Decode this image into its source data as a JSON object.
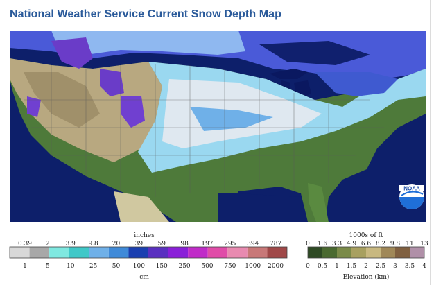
{
  "page": {
    "title": "National Weather Service Current Snow Depth Map"
  },
  "map": {
    "logo_text": "NOAA"
  },
  "snow_legend": {
    "title": "inches",
    "unit_bottom": "cm",
    "top_labels": [
      "0.39",
      "2",
      "3.9",
      "9.8",
      "20",
      "39",
      "59",
      "98",
      "197",
      "295",
      "394",
      "787"
    ],
    "bottom_labels": [
      "1",
      "5",
      "10",
      "25",
      "50",
      "100",
      "150",
      "250",
      "500",
      "750",
      "1000",
      "2000"
    ],
    "colors": [
      "#d8d8d8",
      "#a8a8a8",
      "#7fe8e0",
      "#40c8c8",
      "#6fb0e8",
      "#3f8ad8",
      "#1a3fb0",
      "#5a30c0",
      "#8a1fd8",
      "#c02bc8",
      "#e04ca8",
      "#e88ab0",
      "#c87878",
      "#a04848"
    ]
  },
  "elev_legend": {
    "title": "1000s of ft",
    "unit_bottom": "Elevation (km)",
    "top_labels": [
      "0",
      "1.6",
      "3.3",
      "4.9",
      "6.6",
      "8.2",
      "9.8",
      "11",
      "13"
    ],
    "bottom_labels": [
      "0",
      "0.5",
      "1",
      "1.5",
      "2",
      "2.5",
      "3",
      "3.5",
      "4"
    ],
    "colors": [
      "#2e4a24",
      "#4a6a30",
      "#7a8a48",
      "#a8a060",
      "#c8b880",
      "#a08858",
      "#806040",
      "#b090a8"
    ]
  }
}
